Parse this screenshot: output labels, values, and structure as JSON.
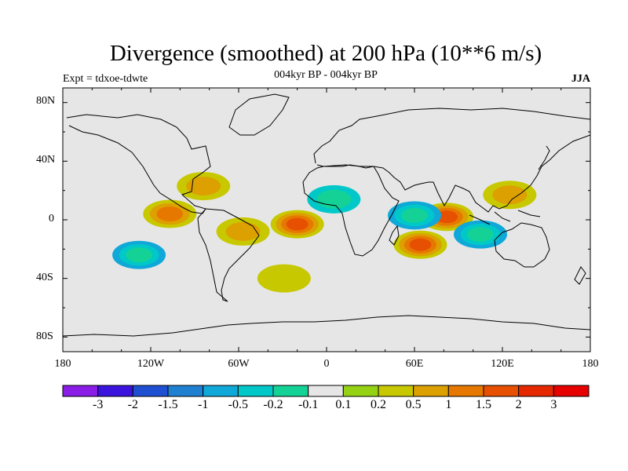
{
  "title": "Divergence (smoothed) at 200 hPa (10**6 m/s)",
  "subtitle_left": "Expt = tdxoe-tdwte",
  "subtitle_center": "004kyr BP - 004kyr BP",
  "subtitle_right": "JJA",
  "y_axis_labels": [
    "80N",
    "40N",
    "0",
    "40S",
    "80S"
  ],
  "x_axis_labels": [
    "180",
    "120W",
    "60W",
    "0",
    "60E",
    "120E",
    "180"
  ],
  "colorbar": {
    "labels": [
      "-3",
      "-2",
      "-1.5",
      "-1",
      "-0.5",
      "-0.2",
      "-0.1",
      "0.1",
      "0.2",
      "0.5",
      "1",
      "1.5",
      "2",
      "3"
    ],
    "colors": [
      "#8a1ee6",
      "#3a14dc",
      "#1f50d2",
      "#1f80d2",
      "#0fa8d8",
      "#00c8c8",
      "#14d296",
      "#e6e6e6",
      "#96d214",
      "#c8c800",
      "#dca000",
      "#e67800",
      "#e65000",
      "#e62800",
      "#e60000"
    ]
  },
  "chart_data": {
    "type": "map-contour",
    "title": "Divergence (smoothed) at 200 hPa (10**6 m/s)",
    "variable": "Divergence (smoothed)",
    "level": "200 hPa",
    "season": "JJA",
    "period": "004kyr BP - 004kyr BP",
    "experiment": "tdxoe-tdwte",
    "lon_range": [
      -180,
      180
    ],
    "lat_range": [
      -90,
      90
    ],
    "levels": [
      -3,
      -2,
      -1.5,
      -1,
      -0.5,
      -0.2,
      -0.1,
      0.1,
      0.2,
      0.5,
      1,
      1.5,
      2,
      3
    ],
    "features": [
      {
        "lon": -20,
        "lat": -3,
        "value": 1.5
      },
      {
        "lon": 64,
        "lat": -17,
        "value": 1.5
      },
      {
        "lon": 82,
        "lat": 2,
        "value": 1.5
      },
      {
        "lon": 105,
        "lat": -10,
        "value": -1
      },
      {
        "lon": 60,
        "lat": 3,
        "value": -1
      },
      {
        "lon": -128,
        "lat": -24,
        "value": -1
      },
      {
        "lon": -107,
        "lat": 4,
        "value": 1
      },
      {
        "lon": -84,
        "lat": 23,
        "value": 0.5
      },
      {
        "lon": -57,
        "lat": -8,
        "value": 0.5
      },
      {
        "lon": 125,
        "lat": 17,
        "value": 0.5
      },
      {
        "lon": -29,
        "lat": -40,
        "value": 0.2
      },
      {
        "lon": 5,
        "lat": 14,
        "value": -0.5
      }
    ]
  }
}
